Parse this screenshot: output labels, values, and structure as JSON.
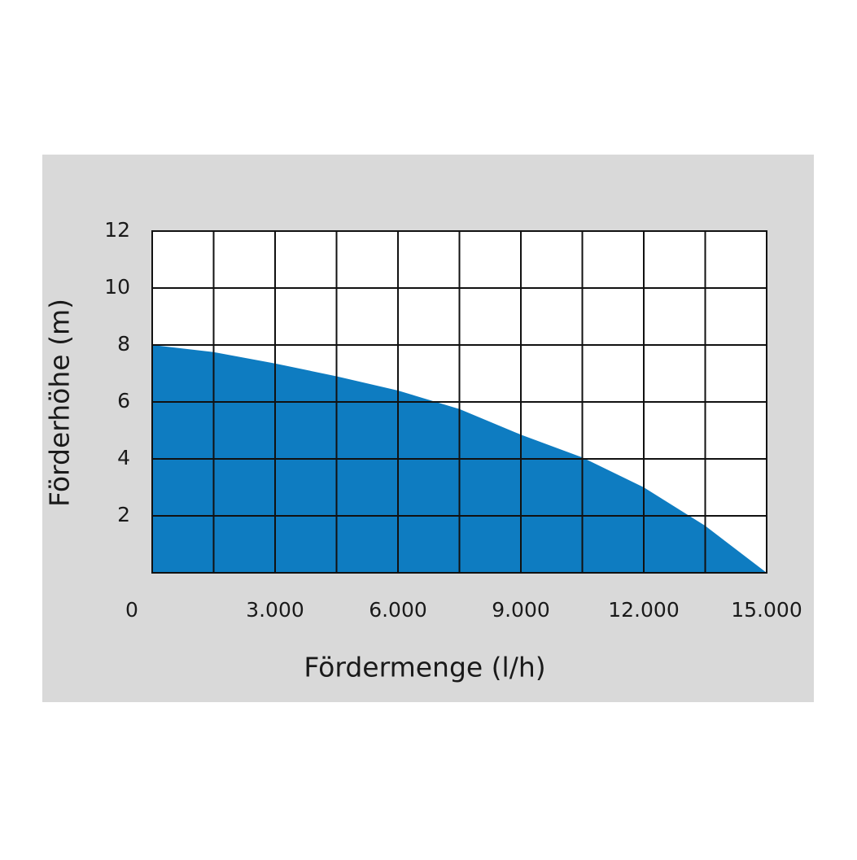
{
  "chart_data": {
    "type": "area",
    "x_label": "Fördermenge (l/h)",
    "y_label": "Förderhöhe (m)",
    "x": [
      0,
      1500,
      3000,
      4500,
      6000,
      7500,
      9000,
      10500,
      12000,
      13500,
      15000
    ],
    "values": [
      8,
      7.75,
      7.35,
      6.9,
      6.4,
      5.75,
      4.85,
      4.05,
      3.0,
      1.65,
      0
    ],
    "color": "#0e7cc1",
    "xlim": [
      0,
      15000
    ],
    "ylim": [
      0,
      12
    ],
    "xticks": [
      0,
      {
        "value": 3000,
        "label": "3.000"
      },
      {
        "value": 6000,
        "label": "6.000"
      },
      {
        "value": 9000,
        "label": "9.000"
      },
      {
        "value": 12000,
        "label": "12.000"
      },
      {
        "value": 15000,
        "label": "15.000"
      }
    ],
    "xgrid": [
      1500,
      3000,
      4500,
      6000,
      7500,
      9000,
      10500,
      12000,
      13500
    ],
    "yticks": [
      2,
      4,
      6,
      8,
      10,
      12
    ],
    "grid": true
  }
}
